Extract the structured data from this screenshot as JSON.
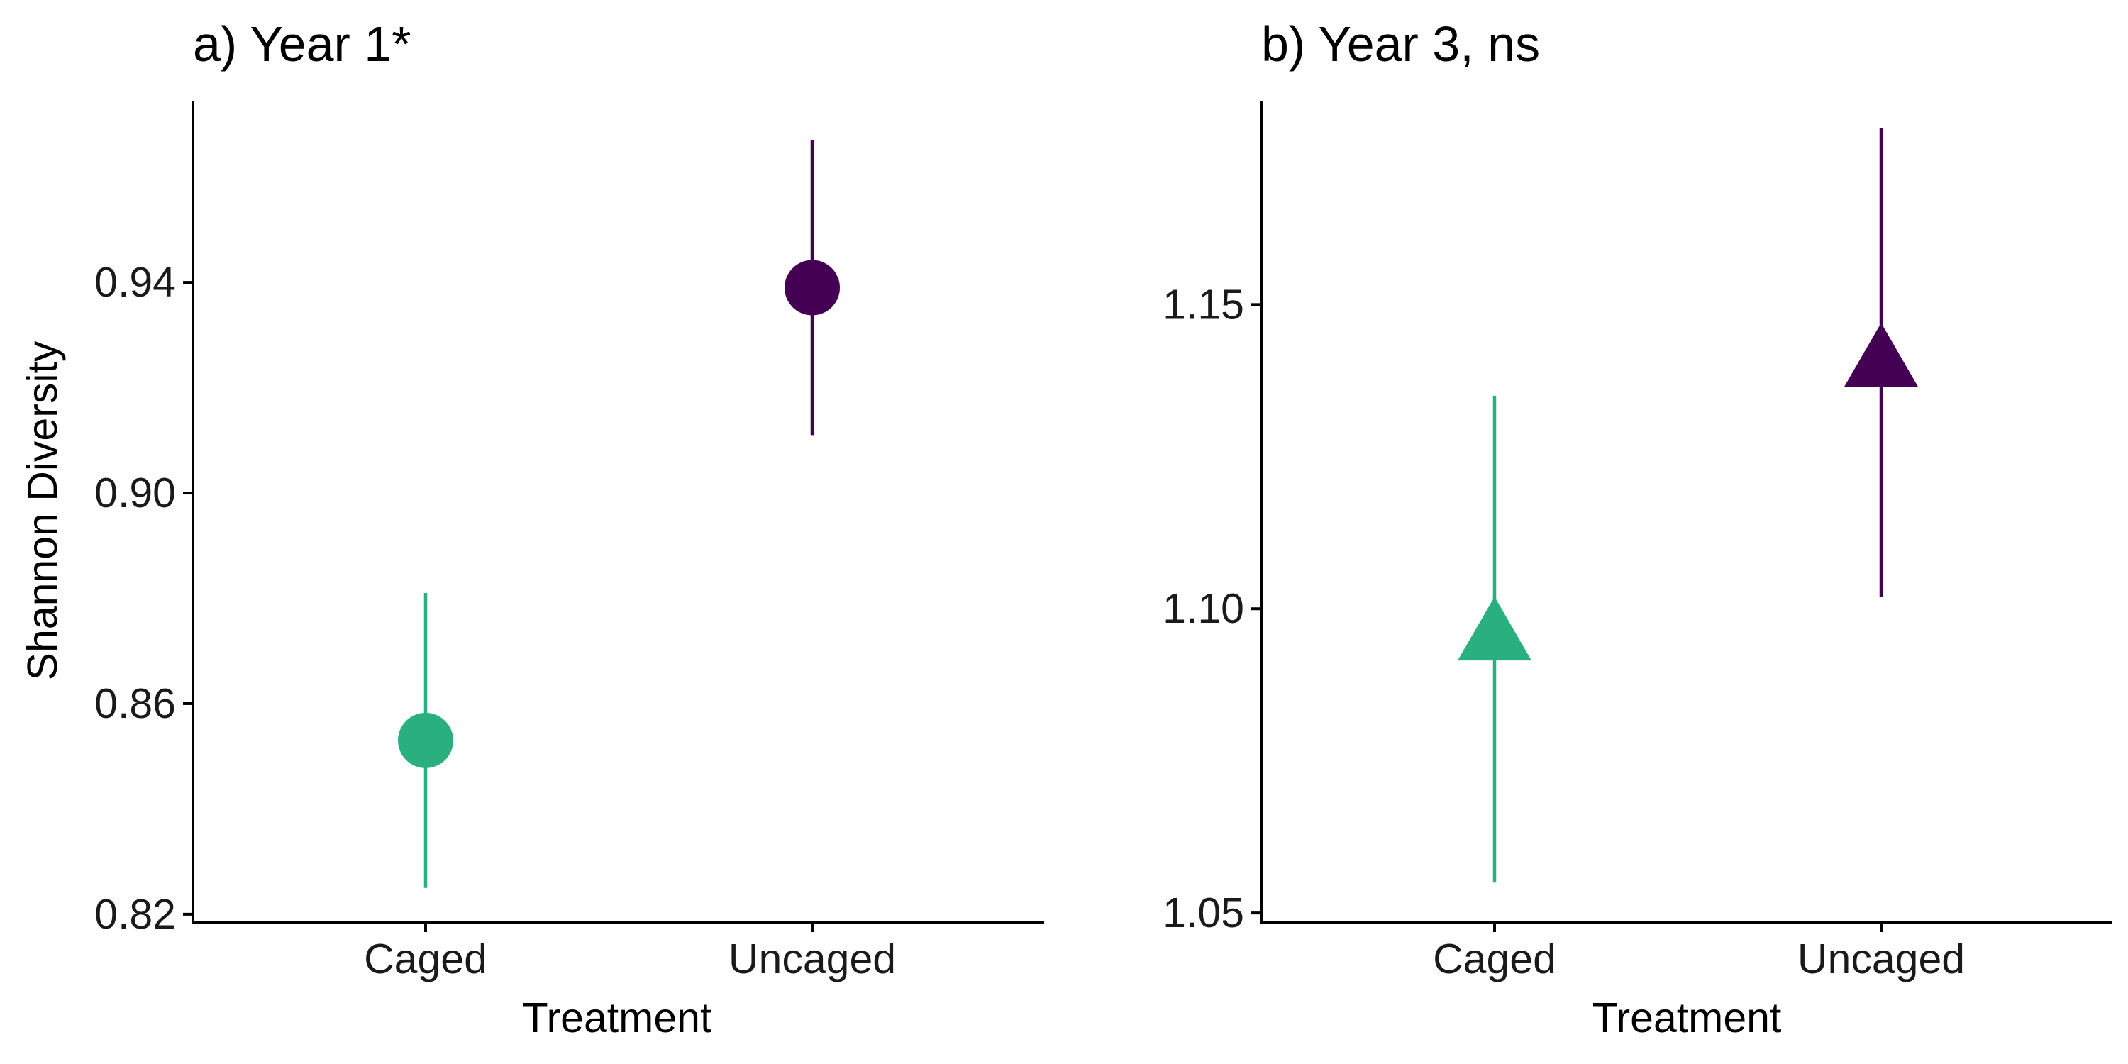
{
  "chart_data": [
    {
      "type": "scatter",
      "title": "a) Year 1*",
      "xlabel": "Treatment",
      "ylabel": "Shannon Diversity",
      "categories": [
        "Caged",
        "Uncaged"
      ],
      "marker": "circle",
      "ylim": [
        0.8185,
        0.9745
      ],
      "y_ticks": [
        0.82,
        0.86,
        0.9,
        0.94
      ],
      "y_tick_labels": [
        "0.82",
        "0.86",
        "0.90",
        "0.94"
      ],
      "points": [
        {
          "category": "Caged",
          "y": 0.853,
          "lower": 0.825,
          "upper": 0.881,
          "color": "#2aaf7f"
        },
        {
          "category": "Uncaged",
          "y": 0.939,
          "lower": 0.911,
          "upper": 0.967,
          "color": "#440154"
        }
      ],
      "grid": false,
      "legend": "none"
    },
    {
      "type": "scatter",
      "title": "b) Year 3, ns",
      "xlabel": "Treatment",
      "ylabel": "",
      "categories": [
        "Caged",
        "Uncaged"
      ],
      "marker": "triangle",
      "ylim": [
        1.0485,
        1.1835
      ],
      "y_ticks": [
        1.05,
        1.1,
        1.15
      ],
      "y_tick_labels": [
        "1.05",
        "1.10",
        "1.15"
      ],
      "points": [
        {
          "category": "Caged",
          "y": 1.095,
          "lower": 1.055,
          "upper": 1.135,
          "color": "#2aaf7f"
        },
        {
          "category": "Uncaged",
          "y": 1.14,
          "lower": 1.102,
          "upper": 1.179,
          "color": "#440154"
        }
      ],
      "grid": false,
      "legend": "none"
    }
  ]
}
